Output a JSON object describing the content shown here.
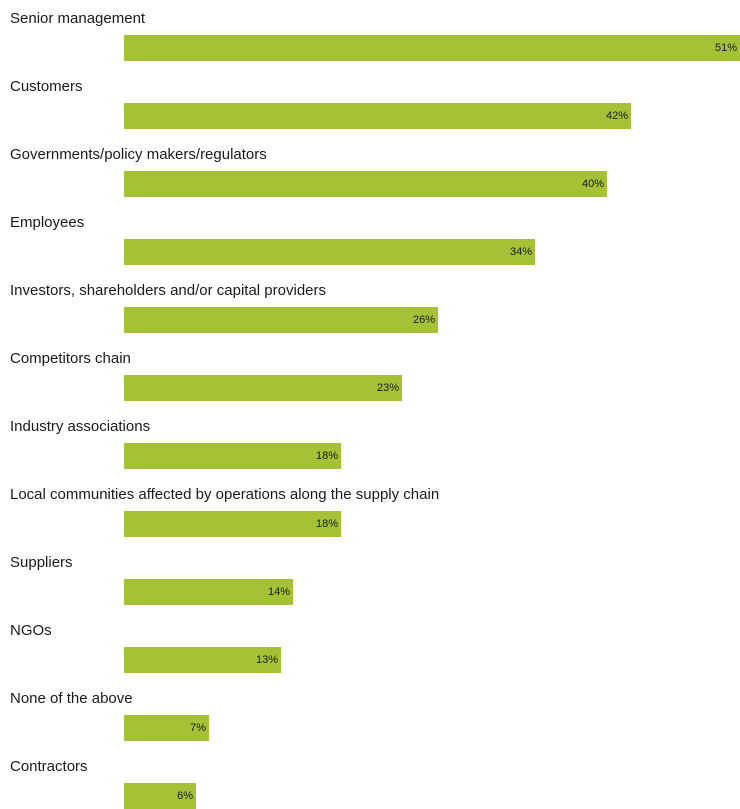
{
  "chart_data": {
    "type": "bar",
    "orientation": "horizontal",
    "categories": [
      "Senior management",
      "Customers",
      "Governments/policy makers/regulators",
      "Employees",
      "Investors, shareholders and/or capital providers",
      "Competitors chain",
      "Industry associations",
      "Local communities affected by operations along the supply chain",
      "Suppliers",
      "NGOs",
      "None of the above",
      "Contractors"
    ],
    "values": [
      51,
      42,
      40,
      34,
      26,
      23,
      18,
      18,
      14,
      13,
      7,
      6
    ],
    "value_labels": [
      "51%",
      "42%",
      "40%",
      "34%",
      "26%",
      "23%",
      "18%",
      "18%",
      "14%",
      "13%",
      "7%",
      "6%"
    ],
    "xlim": [
      0,
      51
    ],
    "grid": false,
    "colors": {
      "bar": "#a5c236"
    }
  }
}
